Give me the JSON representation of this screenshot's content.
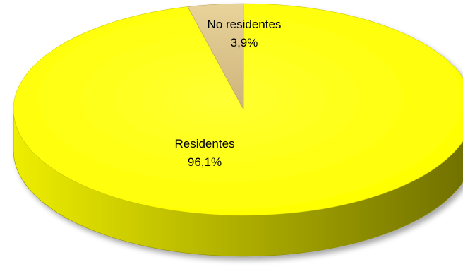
{
  "chart_data": {
    "type": "pie",
    "style": "3d",
    "slices": [
      {
        "label": "Residentes",
        "value": 96.1,
        "value_label": "96,1%",
        "color": "#FFFF00"
      },
      {
        "label": "No residentes",
        "value": 3.9,
        "value_label": "3,9%",
        "color": "#E2CC8E"
      }
    ],
    "legend": "none"
  }
}
